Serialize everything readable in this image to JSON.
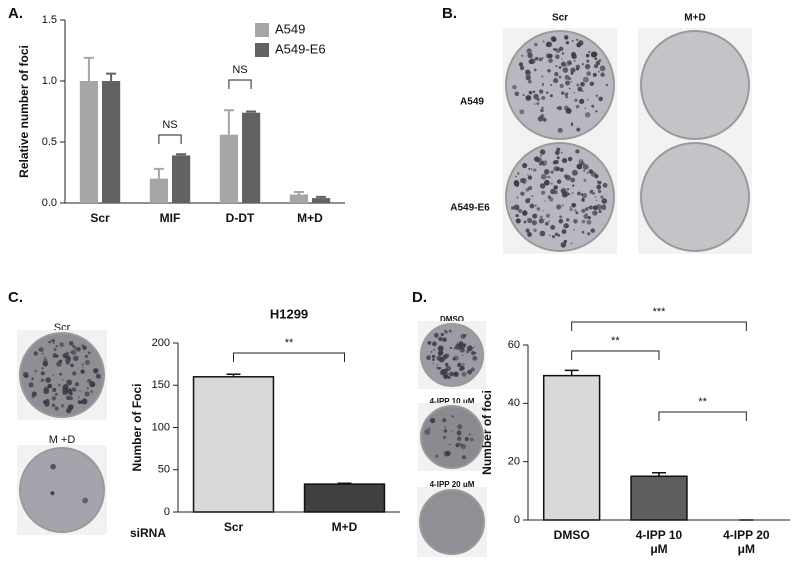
{
  "panels": [
    {
      "label": "A."
    },
    {
      "label": "B.",
      "columns": [
        "Scr",
        "M+D"
      ],
      "rows": [
        "A549",
        "A549-E6"
      ]
    },
    {
      "label": "C.",
      "images": [
        "Scr",
        "M +D"
      ]
    },
    {
      "label": "D.",
      "images": [
        "DMSO",
        "4-IPP 10 μM",
        "4-IPP 20 μM"
      ]
    }
  ],
  "chart_data": [
    {
      "type": "bar",
      "ylabel": "Relative number of foci",
      "categories": [
        "Scr",
        "MIF",
        "D-DT",
        "M+D"
      ],
      "series": [
        {
          "name": "A549",
          "color": "#a6a6a6",
          "values": [
            1.0,
            0.2,
            0.56,
            0.07
          ],
          "errors": [
            0.19,
            0.08,
            0.2,
            0.02
          ]
        },
        {
          "name": "A549-E6",
          "color": "#626262",
          "values": [
            1.0,
            0.39,
            0.74,
            0.04
          ],
          "errors": [
            0.06,
            0.01,
            0.01,
            0.01
          ]
        }
      ],
      "ylim": [
        0,
        1.5
      ],
      "yticks": [
        {
          "value": 0,
          "label": "0.0"
        },
        0.5,
        {
          "value": 1,
          "label": "1.0"
        },
        1.5
      ],
      "legend": "upper right",
      "annotations": [
        "NS",
        "NS"
      ]
    },
    {
      "type": "bar",
      "title": "H1299",
      "ylabel": "Number of Foci",
      "xlabel": "siRNA",
      "categories": [
        "Scr",
        "M+D"
      ],
      "values": [
        160,
        33
      ],
      "errors": [
        3,
        1
      ],
      "colors": [
        "#d9d9d9",
        "#404040"
      ],
      "ylim": [
        0,
        200
      ],
      "yticks": [
        0,
        50,
        100,
        150,
        200
      ],
      "annotations": [
        "**"
      ]
    },
    {
      "type": "bar",
      "ylabel": "Number of foci",
      "categories": [
        "DMSO",
        "4-IPP 10 μM",
        "4-IPP 20 μM"
      ],
      "values": [
        49.5,
        15,
        0
      ],
      "errors": [
        1.8,
        1.2,
        0
      ],
      "colors": [
        "#d9d9d9",
        "#5e5e5e",
        "#303030"
      ],
      "ylim": [
        0,
        60
      ],
      "yticks": [
        0,
        20,
        40,
        60
      ],
      "annotations": [
        "***",
        "**",
        "**"
      ]
    }
  ]
}
